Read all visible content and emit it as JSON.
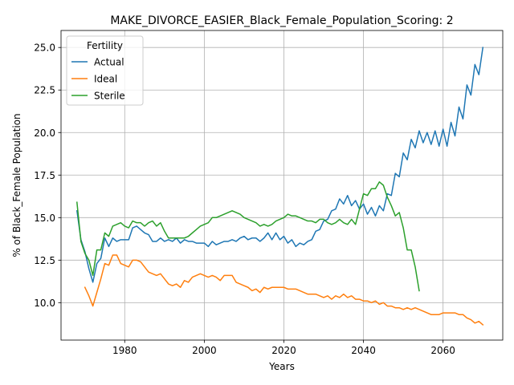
{
  "chart_data": {
    "type": "line",
    "title": "MAKE_DIVORCE_EASIER_Black_Female_Population_Scoring: 2",
    "xlabel": "Years",
    "ylabel": "% of Black_Female Population",
    "xlim": [
      1964,
      2075
    ],
    "ylim": [
      7.8,
      26.0
    ],
    "xticks": [
      1980,
      2000,
      2020,
      2040,
      2060
    ],
    "yticks": [
      10.0,
      12.5,
      15.0,
      17.5,
      20.0,
      22.5,
      25.0
    ],
    "ytick_labels": [
      "10.0",
      "12.5",
      "15.0",
      "17.5",
      "20.0",
      "22.5",
      "25.0"
    ],
    "grid": true,
    "legend": {
      "title": "Fertility",
      "position": "top-left"
    },
    "series": [
      {
        "name": "Actual",
        "color": "#1f77b4",
        "x": [
          1968,
          1969,
          1970,
          1971,
          1972,
          1973,
          1974,
          1975,
          1976,
          1977,
          1978,
          1979,
          1980,
          1981,
          1982,
          1983,
          1984,
          1985,
          1986,
          1987,
          1988,
          1989,
          1990,
          1991,
          1992,
          1993,
          1994,
          1995,
          1996,
          1997,
          1998,
          1999,
          2000,
          2001,
          2002,
          2003,
          2004,
          2005,
          2006,
          2007,
          2008,
          2009,
          2010,
          2011,
          2012,
          2013,
          2014,
          2015,
          2016,
          2017,
          2018,
          2019,
          2020,
          2021,
          2022,
          2023,
          2024,
          2025,
          2026,
          2027,
          2028,
          2029,
          2030,
          2031,
          2032,
          2033,
          2034,
          2035,
          2036,
          2037,
          2038,
          2039,
          2040,
          2041,
          2042,
          2043,
          2044,
          2045,
          2046,
          2047,
          2048,
          2049,
          2050,
          2051,
          2052,
          2053,
          2054,
          2055,
          2056,
          2057,
          2058,
          2059,
          2060,
          2061,
          2062,
          2063,
          2064,
          2065,
          2066,
          2067,
          2068,
          2069,
          2070
        ],
        "values": [
          15.4,
          13.7,
          13.0,
          12.0,
          11.2,
          12.3,
          12.6,
          13.8,
          13.3,
          13.8,
          13.6,
          13.7,
          13.7,
          13.7,
          14.4,
          14.5,
          14.3,
          14.1,
          14.0,
          13.6,
          13.6,
          13.8,
          13.6,
          13.7,
          13.6,
          13.8,
          13.5,
          13.7,
          13.6,
          13.6,
          13.5,
          13.5,
          13.5,
          13.3,
          13.6,
          13.4,
          13.5,
          13.6,
          13.6,
          13.7,
          13.6,
          13.8,
          13.9,
          13.7,
          13.8,
          13.8,
          13.6,
          13.8,
          14.1,
          13.7,
          14.1,
          13.7,
          13.9,
          13.5,
          13.7,
          13.3,
          13.5,
          13.4,
          13.6,
          13.7,
          14.2,
          14.3,
          14.8,
          14.9,
          15.4,
          15.5,
          16.1,
          15.8,
          16.3,
          15.7,
          16.0,
          15.5,
          15.8,
          15.2,
          15.6,
          15.1,
          15.7,
          15.4,
          16.4,
          16.3,
          17.6,
          17.4,
          18.8,
          18.4,
          19.6,
          19.1,
          20.1,
          19.4,
          20.0,
          19.3,
          20.1,
          19.2,
          20.2,
          19.2,
          20.6,
          19.8,
          21.5,
          20.8,
          22.8,
          22.2,
          24.0,
          23.4,
          25.0
        ]
      },
      {
        "name": "Ideal",
        "color": "#ff7f0e",
        "x": [
          1970,
          1971,
          1972,
          1973,
          1974,
          1975,
          1976,
          1977,
          1978,
          1979,
          1980,
          1981,
          1982,
          1983,
          1984,
          1985,
          1986,
          1987,
          1988,
          1989,
          1990,
          1991,
          1992,
          1993,
          1994,
          1995,
          1996,
          1997,
          1998,
          1999,
          2000,
          2001,
          2002,
          2003,
          2004,
          2005,
          2006,
          2007,
          2008,
          2009,
          2010,
          2011,
          2012,
          2013,
          2014,
          2015,
          2016,
          2017,
          2018,
          2019,
          2020,
          2021,
          2022,
          2023,
          2024,
          2025,
          2026,
          2027,
          2028,
          2029,
          2030,
          2031,
          2032,
          2033,
          2034,
          2035,
          2036,
          2037,
          2038,
          2039,
          2040,
          2041,
          2042,
          2043,
          2044,
          2045,
          2046,
          2047,
          2048,
          2049,
          2050,
          2051,
          2052,
          2053,
          2054,
          2055,
          2056,
          2057,
          2058,
          2059,
          2060,
          2061,
          2062,
          2063,
          2064,
          2065,
          2066,
          2067,
          2068,
          2069,
          2070
        ],
        "values": [
          10.9,
          10.4,
          9.8,
          10.6,
          11.4,
          12.3,
          12.2,
          12.8,
          12.8,
          12.3,
          12.2,
          12.1,
          12.5,
          12.5,
          12.4,
          12.1,
          11.8,
          11.7,
          11.6,
          11.7,
          11.4,
          11.1,
          11.0,
          11.1,
          10.9,
          11.3,
          11.2,
          11.5,
          11.6,
          11.7,
          11.6,
          11.5,
          11.6,
          11.5,
          11.3,
          11.6,
          11.6,
          11.6,
          11.2,
          11.1,
          11.0,
          10.9,
          10.7,
          10.8,
          10.6,
          10.9,
          10.8,
          10.9,
          10.9,
          10.9,
          10.9,
          10.8,
          10.8,
          10.8,
          10.7,
          10.6,
          10.5,
          10.5,
          10.5,
          10.4,
          10.3,
          10.4,
          10.2,
          10.4,
          10.3,
          10.5,
          10.3,
          10.4,
          10.2,
          10.2,
          10.1,
          10.1,
          10.0,
          10.1,
          9.9,
          10.0,
          9.8,
          9.8,
          9.7,
          9.7,
          9.6,
          9.7,
          9.6,
          9.7,
          9.6,
          9.5,
          9.4,
          9.3,
          9.3,
          9.3,
          9.4,
          9.4,
          9.4,
          9.4,
          9.3,
          9.3,
          9.1,
          9.0,
          8.8,
          8.9,
          8.7
        ]
      },
      {
        "name": "Sterile",
        "color": "#2ca02c",
        "x": [
          1968,
          1969,
          1970,
          1971,
          1972,
          1973,
          1974,
          1975,
          1976,
          1977,
          1978,
          1979,
          1980,
          1981,
          1982,
          1983,
          1984,
          1985,
          1986,
          1987,
          1988,
          1989,
          1990,
          1991,
          1992,
          1993,
          1994,
          1995,
          1996,
          1997,
          1998,
          1999,
          2000,
          2001,
          2002,
          2003,
          2004,
          2005,
          2006,
          2007,
          2008,
          2009,
          2010,
          2011,
          2012,
          2013,
          2014,
          2015,
          2016,
          2017,
          2018,
          2019,
          2020,
          2021,
          2022,
          2023,
          2024,
          2025,
          2026,
          2027,
          2028,
          2029,
          2030,
          2031,
          2032,
          2033,
          2034,
          2035,
          2036,
          2037,
          2038,
          2039,
          2040,
          2041,
          2042,
          2043,
          2044,
          2045,
          2046,
          2047,
          2048,
          2049,
          2050,
          2051,
          2052,
          2053,
          2054
        ],
        "values": [
          15.9,
          13.6,
          12.9,
          12.5,
          11.6,
          13.1,
          13.1,
          14.1,
          13.9,
          14.5,
          14.6,
          14.7,
          14.5,
          14.4,
          14.8,
          14.7,
          14.7,
          14.5,
          14.7,
          14.8,
          14.5,
          14.7,
          14.2,
          13.8,
          13.8,
          13.8,
          13.8,
          13.8,
          13.9,
          14.1,
          14.3,
          14.5,
          14.6,
          14.7,
          15.0,
          15.0,
          15.1,
          15.2,
          15.3,
          15.4,
          15.3,
          15.2,
          15.0,
          14.9,
          14.8,
          14.7,
          14.5,
          14.6,
          14.5,
          14.6,
          14.8,
          14.9,
          15.0,
          15.2,
          15.1,
          15.1,
          15.0,
          14.9,
          14.8,
          14.8,
          14.7,
          14.9,
          14.9,
          14.7,
          14.6,
          14.7,
          14.9,
          14.7,
          14.6,
          14.9,
          14.6,
          15.5,
          16.4,
          16.3,
          16.7,
          16.7,
          17.1,
          16.9,
          16.2,
          15.7,
          15.1,
          15.3,
          14.4,
          13.1,
          13.1,
          12.1,
          10.7
        ]
      }
    ]
  }
}
